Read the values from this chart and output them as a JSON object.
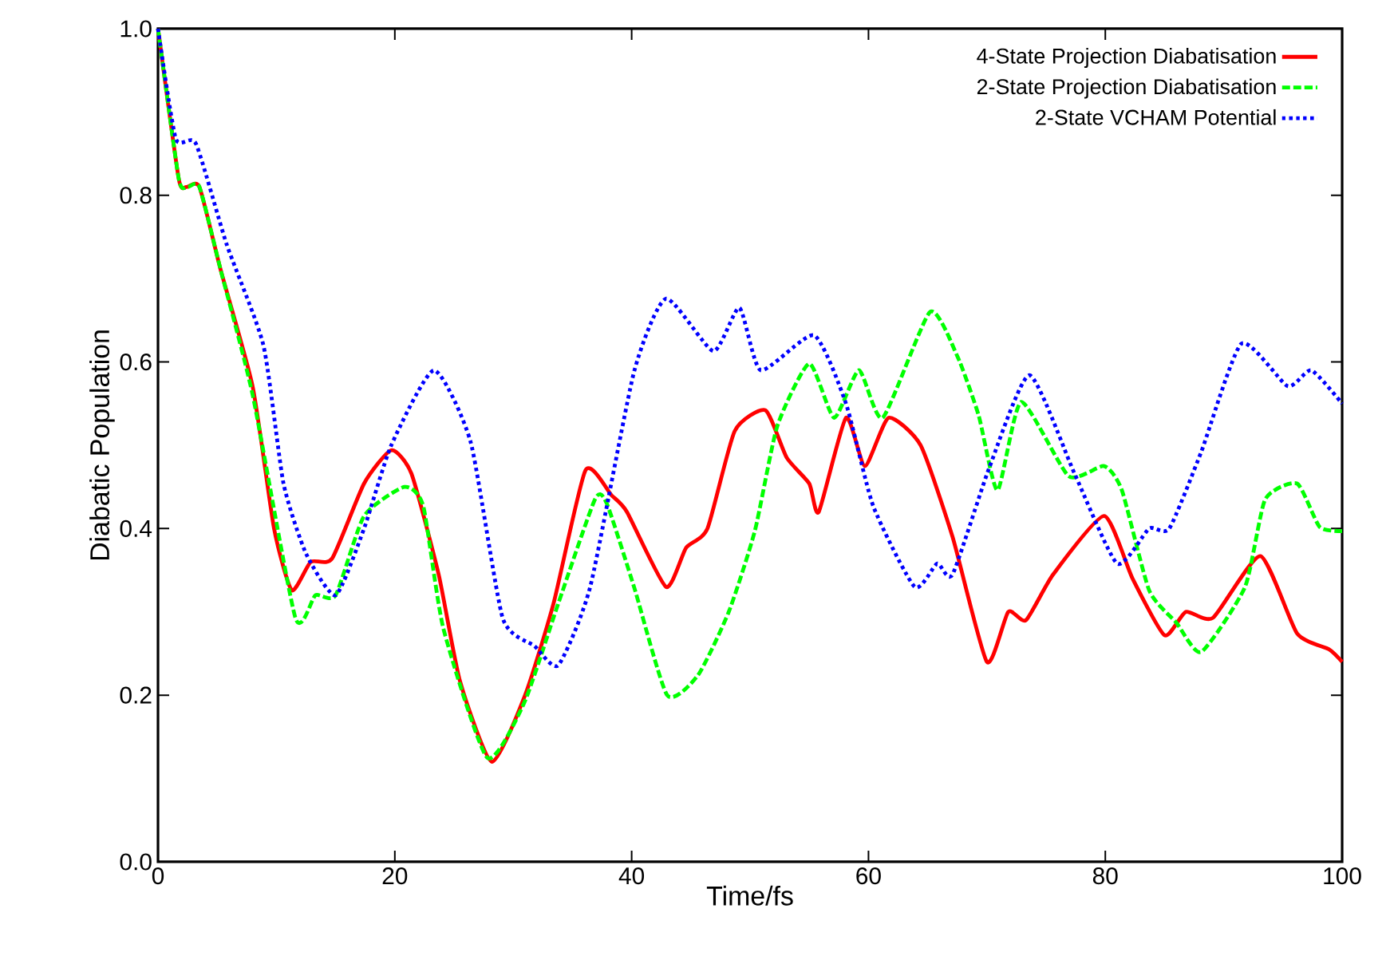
{
  "chart_data": {
    "type": "line",
    "xlabel": "Time/fs",
    "ylabel": "Diabatic Population",
    "xlim": [
      0,
      100
    ],
    "ylim": [
      0,
      1
    ],
    "xticks": [
      0,
      20,
      40,
      60,
      80,
      100
    ],
    "yticks": [
      {
        "value": 0,
        "label": "0.0"
      },
      {
        "value": 0.2,
        "label": "0.2"
      },
      {
        "value": 0.4,
        "label": "0.4"
      },
      {
        "value": 0.6,
        "label": "0.6"
      },
      {
        "value": 0.8,
        "label": "0.8"
      },
      {
        "value": 1,
        "label": "1.0"
      }
    ],
    "legend": "top right",
    "grid": false,
    "marker": "none",
    "series": [
      {
        "name": "4-State Projection Diabatisation",
        "color": "#ff0000",
        "line_style": "solid",
        "x": [
          0,
          1.75,
          2.4,
          3.5,
          5.3,
          8,
          9.8,
          11.3,
          12.9,
          14.7,
          17.4,
          19.7,
          21.4,
          23.7,
          25.5,
          28.2,
          31,
          33.4,
          36.1,
          38.3,
          39.6,
          42.9,
          44.6,
          46.4,
          48.7,
          51.3,
          53.1,
          55,
          55.8,
          58.1,
          59.7,
          61.7,
          64.4,
          67.1,
          70,
          71.8,
          73.3,
          75.6,
          79.9,
          82.3,
          85,
          86.8,
          89.1,
          93.1,
          96.2,
          98.9,
          100
        ],
        "values": [
          1.0,
          0.82,
          0.81,
          0.81,
          0.71,
          0.57,
          0.4,
          0.326,
          0.36,
          0.364,
          0.454,
          0.494,
          0.466,
          0.345,
          0.217,
          0.12,
          0.2,
          0.31,
          0.47,
          0.44,
          0.42,
          0.33,
          0.377,
          0.4,
          0.517,
          0.542,
          0.485,
          0.454,
          0.42,
          0.533,
          0.475,
          0.533,
          0.5,
          0.39,
          0.24,
          0.3,
          0.29,
          0.345,
          0.415,
          0.34,
          0.272,
          0.3,
          0.293,
          0.367,
          0.274,
          0.255,
          0.24
        ]
      },
      {
        "name": "2-State Projection Diabatisation",
        "color": "#00ff00",
        "line_style": "dashed",
        "x": [
          0,
          1.75,
          2.5,
          3.5,
          5.3,
          8,
          11.6,
          13.3,
          15,
          17.4,
          20.8,
          22.4,
          24.1,
          27.8,
          30.9,
          33.8,
          36.9,
          37.9,
          40.2,
          43,
          45.6,
          48.2,
          50.4,
          52.3,
          55,
          57.1,
          59.2,
          61.2,
          65.2,
          67.5,
          69.3,
          70.9,
          72.9,
          76.9,
          79.9,
          81.4,
          83.7,
          86,
          88.1,
          91.8,
          93.5,
          96.2,
          98.1,
          100
        ],
        "values": [
          1.0,
          0.82,
          0.81,
          0.81,
          0.71,
          0.56,
          0.293,
          0.32,
          0.32,
          0.415,
          0.45,
          0.427,
          0.28,
          0.125,
          0.19,
          0.31,
          0.435,
          0.43,
          0.33,
          0.2,
          0.224,
          0.3,
          0.397,
          0.523,
          0.598,
          0.533,
          0.59,
          0.533,
          0.66,
          0.607,
          0.536,
          0.446,
          0.552,
          0.463,
          0.475,
          0.446,
          0.326,
          0.287,
          0.252,
          0.33,
          0.435,
          0.454,
          0.402,
          0.397
        ]
      },
      {
        "name": "2-State VCHAM Potential",
        "color": "#0000ff",
        "line_style": "dotted",
        "x": [
          0,
          1.5,
          3.2,
          5.8,
          8.9,
          10.6,
          12.5,
          15,
          17.4,
          19.7,
          23.3,
          26.4,
          29.1,
          31.8,
          33.8,
          36.5,
          40.2,
          42.9,
          46.9,
          49.1,
          50.9,
          55.4,
          58.1,
          60.4,
          63.9,
          65.8,
          67.1,
          70.2,
          73.6,
          77.4,
          81,
          83.7,
          85.4,
          88.1,
          91.5,
          95.4,
          97.4,
          100
        ],
        "values": [
          1.0,
          0.868,
          0.862,
          0.741,
          0.62,
          0.454,
          0.37,
          0.32,
          0.4,
          0.5,
          0.59,
          0.504,
          0.293,
          0.259,
          0.236,
          0.33,
          0.588,
          0.676,
          0.613,
          0.665,
          0.59,
          0.632,
          0.55,
          0.427,
          0.33,
          0.358,
          0.345,
          0.473,
          0.584,
          0.466,
          0.358,
          0.4,
          0.4,
          0.492,
          0.622,
          0.571,
          0.59,
          0.55
        ]
      }
    ]
  }
}
